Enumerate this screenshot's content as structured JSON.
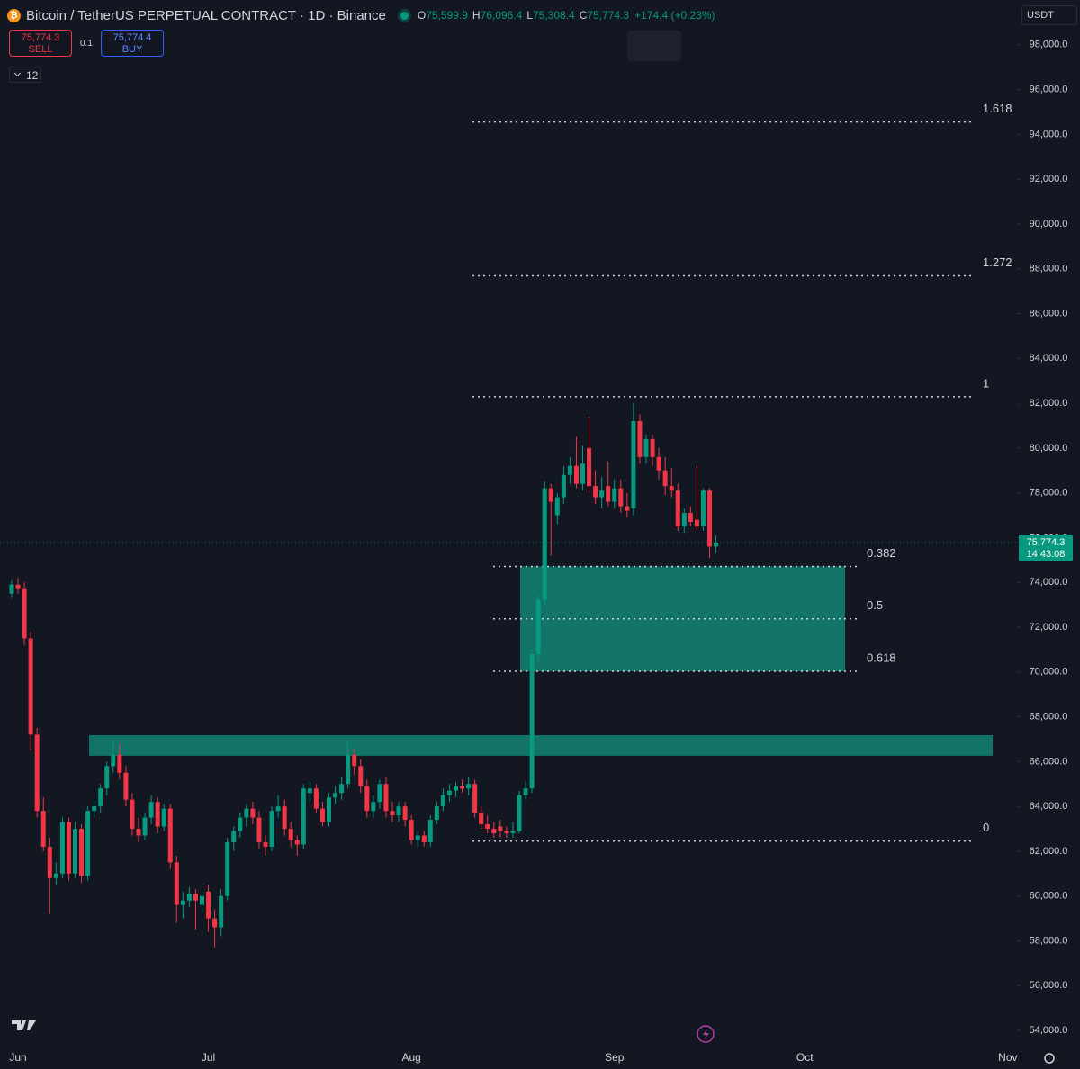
{
  "chart_data": {
    "type": "candlestick",
    "symbol": "Bitcoin / TetherUS PERPETUAL CONTRACT · 1D · Binance",
    "legend": [
      {
        "key": "O",
        "value": "75,599.9"
      },
      {
        "key": "H",
        "value": "76,096.4"
      },
      {
        "key": "L",
        "value": "75,308.4"
      },
      {
        "key": "C",
        "value": "75,774.3"
      }
    ],
    "change": "+174.4 (+0.23%)",
    "currency": "USDT",
    "sell": {
      "price": "75,774.3",
      "label": "SELL"
    },
    "quantity": "0.1",
    "buy": {
      "price": "75,774.4",
      "label": "BUY"
    },
    "indicators_count": "12",
    "last_price": {
      "label": "75,774.3",
      "countdown": "14:43:08"
    },
    "up_color": "#089981",
    "down_color": "#f23645",
    "categories": [
      null,
      "Jun",
      null,
      null,
      null,
      null,
      null,
      null,
      null,
      null,
      null,
      null,
      null,
      null,
      null,
      null,
      null,
      null,
      null,
      null,
      null,
      null,
      null,
      null,
      null,
      null,
      null,
      null,
      null,
      null,
      null,
      "Jul",
      null,
      null,
      null,
      null,
      null,
      null,
      null,
      null,
      null,
      null,
      null,
      null,
      null,
      null,
      null,
      null,
      null,
      null,
      null,
      null,
      null,
      null,
      null,
      null,
      null,
      null,
      null,
      null,
      null,
      null,
      null,
      "Aug",
      null,
      null,
      null,
      null,
      null,
      null,
      null,
      null,
      null,
      null,
      null,
      null,
      null,
      null,
      null,
      null,
      null,
      null,
      null,
      null,
      null,
      null,
      null,
      null,
      null,
      null,
      null,
      null,
      null,
      null,
      null,
      "Sep",
      null,
      null,
      null,
      null,
      null,
      null,
      null,
      null,
      null,
      null,
      null,
      null,
      null,
      null,
      null,
      null,
      null,
      null,
      null,
      null,
      null,
      null,
      null,
      null,
      null,
      null,
      null,
      null,
      null,
      "Oct",
      null,
      null,
      null,
      null,
      null,
      null,
      null,
      null,
      null,
      null,
      null,
      null,
      null,
      null,
      null,
      null,
      null,
      null,
      null,
      null,
      null,
      null,
      null,
      null,
      null,
      null,
      null,
      null,
      null,
      null,
      null,
      "Nov"
    ],
    "ohlc": [
      [
        73500,
        74100,
        73300,
        73900
      ],
      [
        73900,
        74200,
        73500,
        73700
      ],
      [
        73700,
        74000,
        71200,
        71500
      ],
      [
        71500,
        71800,
        66500,
        67200
      ],
      [
        67200,
        67500,
        63500,
        63800
      ],
      [
        63800,
        64400,
        62000,
        62200
      ],
      [
        62200,
        62600,
        59200,
        60800
      ],
      [
        60800,
        61500,
        60500,
        61000
      ],
      [
        61000,
        63500,
        60800,
        63300
      ],
      [
        63300,
        63500,
        60700,
        61000
      ],
      [
        61000,
        63300,
        60800,
        63000
      ],
      [
        63000,
        63200,
        60600,
        60900
      ],
      [
        60900,
        64000,
        60700,
        63800
      ],
      [
        63800,
        64300,
        63500,
        64000
      ],
      [
        64000,
        65000,
        63700,
        64800
      ],
      [
        64800,
        66000,
        64500,
        65800
      ],
      [
        65800,
        66900,
        65500,
        66300
      ],
      [
        66300,
        66800,
        65200,
        65500
      ],
      [
        65500,
        65800,
        64000,
        64300
      ],
      [
        64300,
        64600,
        62700,
        63000
      ],
      [
        63000,
        63500,
        62400,
        62700
      ],
      [
        62700,
        63700,
        62500,
        63500
      ],
      [
        63500,
        64500,
        63200,
        64200
      ],
      [
        64200,
        64400,
        62800,
        63100
      ],
      [
        63100,
        64100,
        62900,
        63900
      ],
      [
        63900,
        64100,
        61200,
        61500
      ],
      [
        61500,
        61800,
        58800,
        59600
      ],
      [
        59600,
        60200,
        59000,
        59800
      ],
      [
        59800,
        60400,
        59500,
        60100
      ],
      [
        60100,
        60300,
        58500,
        59800
      ],
      [
        59600,
        60300,
        59200,
        60000
      ],
      [
        60200,
        60500,
        58400,
        59000
      ],
      [
        59000,
        59400,
        57700,
        58600
      ],
      [
        58600,
        60300,
        58200,
        60000
      ],
      [
        60000,
        62600,
        59800,
        62400
      ],
      [
        62400,
        63100,
        62000,
        62900
      ],
      [
        62900,
        63700,
        62600,
        63500
      ],
      [
        63500,
        64100,
        63100,
        63900
      ],
      [
        63900,
        64200,
        63200,
        63500
      ],
      [
        63500,
        63800,
        62100,
        62400
      ],
      [
        62400,
        62700,
        61800,
        62200
      ],
      [
        62200,
        64000,
        62000,
        63800
      ],
      [
        63800,
        64500,
        63500,
        64000
      ],
      [
        64000,
        64300,
        62700,
        63000
      ],
      [
        63000,
        63300,
        62200,
        62500
      ],
      [
        62500,
        62700,
        61800,
        62300
      ],
      [
        62300,
        65000,
        62100,
        64800
      ],
      [
        64600,
        65100,
        64200,
        64800
      ],
      [
        64800,
        65000,
        63700,
        63900
      ],
      [
        63900,
        64200,
        63100,
        63300
      ],
      [
        63300,
        64600,
        63100,
        64400
      ],
      [
        64400,
        64900,
        64100,
        64600
      ],
      [
        64600,
        65300,
        64300,
        65000
      ],
      [
        65000,
        66900,
        64800,
        66300
      ],
      [
        66300,
        66600,
        65400,
        65800
      ],
      [
        65800,
        66100,
        64600,
        64900
      ],
      [
        64900,
        65200,
        63500,
        63800
      ],
      [
        63800,
        64500,
        63500,
        64200
      ],
      [
        64200,
        65200,
        63900,
        65000
      ],
      [
        65000,
        65300,
        63500,
        63800
      ],
      [
        63800,
        64200,
        63300,
        63600
      ],
      [
        63600,
        64200,
        63300,
        64000
      ],
      [
        64000,
        64200,
        63100,
        63400
      ],
      [
        63400,
        63600,
        62300,
        62500
      ],
      [
        62500,
        62900,
        62200,
        62700
      ],
      [
        62700,
        62900,
        62200,
        62400
      ],
      [
        62400,
        63600,
        62200,
        63400
      ],
      [
        63400,
        64200,
        63200,
        64000
      ],
      [
        64000,
        64800,
        63800,
        64500
      ],
      [
        64500,
        65000,
        64200,
        64700
      ],
      [
        64700,
        65100,
        64400,
        64900
      ],
      [
        64900,
        65200,
        64600,
        64800
      ],
      [
        64800,
        65300,
        64500,
        65000
      ],
      [
        65000,
        65200,
        63500,
        63700
      ],
      [
        63700,
        64000,
        63000,
        63200
      ],
      [
        63200,
        63600,
        62800,
        63000
      ],
      [
        63000,
        63300,
        62600,
        62800
      ],
      [
        63100,
        63400,
        62600,
        62900
      ],
      [
        62900,
        63100,
        62600,
        62800
      ],
      [
        62800,
        63300,
        62600,
        62900
      ],
      [
        62900,
        64700,
        62800,
        64500
      ],
      [
        64500,
        65100,
        64300,
        64800
      ],
      [
        64800,
        71000,
        64600,
        70800
      ],
      [
        70800,
        73400,
        70500,
        73200
      ],
      [
        73200,
        78500,
        73000,
        78200
      ],
      [
        78200,
        78400,
        75200,
        77600
      ],
      [
        77000,
        78000,
        76600,
        77800
      ],
      [
        77800,
        79200,
        77500,
        78800
      ],
      [
        78800,
        79600,
        78400,
        79200
      ],
      [
        79200,
        80500,
        78200,
        78400
      ],
      [
        78400,
        80100,
        78100,
        79300
      ],
      [
        80000,
        81400,
        78000,
        78300
      ],
      [
        78300,
        79000,
        77500,
        77800
      ],
      [
        77800,
        78700,
        77300,
        78100
      ],
      [
        78300,
        79400,
        77400,
        77600
      ],
      [
        77600,
        78600,
        77300,
        78200
      ],
      [
        78200,
        78600,
        77100,
        77400
      ],
      [
        77400,
        78000,
        76900,
        77200
      ],
      [
        77300,
        82000,
        77000,
        81200
      ],
      [
        81200,
        81500,
        79300,
        79600
      ],
      [
        79600,
        80600,
        79300,
        80400
      ],
      [
        80400,
        80600,
        79200,
        79600
      ],
      [
        79600,
        80000,
        78600,
        79000
      ],
      [
        79000,
        79600,
        77900,
        78300
      ],
      [
        78300,
        79100,
        77800,
        78100
      ],
      [
        78100,
        78400,
        76300,
        76500
      ],
      [
        76500,
        77300,
        76200,
        77100
      ],
      [
        77100,
        77400,
        76500,
        76700
      ],
      [
        76800,
        79200,
        76300,
        76500
      ],
      [
        76500,
        78200,
        76300,
        78100
      ],
      [
        78100,
        78200,
        75100,
        75600
      ],
      [
        75599.9,
        76096.4,
        75308.4,
        75774.3
      ],
      null,
      null,
      null,
      null,
      null,
      null,
      null,
      null,
      null,
      null,
      null,
      null,
      null,
      null,
      null,
      null,
      null,
      null,
      null,
      null,
      null,
      null,
      null,
      null,
      null,
      null,
      null,
      null,
      null,
      null,
      null,
      null,
      null,
      null,
      null,
      null,
      null,
      null,
      null,
      null,
      null,
      null,
      null,
      null,
      null,
      null
    ],
    "ylim": [
      53400,
      100000
    ],
    "yticks": [
      {
        "value": 54000,
        "label": "54,000.0"
      },
      {
        "value": 56000,
        "label": "56,000.0"
      },
      {
        "value": 58000,
        "label": "58,000.0"
      },
      {
        "value": 60000,
        "label": "60,000.0"
      },
      {
        "value": 62000,
        "label": "62,000.0"
      },
      {
        "value": 64000,
        "label": "64,000.0"
      },
      {
        "value": 66000,
        "label": "66,000.0"
      },
      {
        "value": 68000,
        "label": "68,000.0"
      },
      {
        "value": 70000,
        "label": "70,000.0"
      },
      {
        "value": 72000,
        "label": "72,000.0"
      },
      {
        "value": 74000,
        "label": "74,000.0"
      },
      {
        "value": 76000,
        "label": "76,000.0"
      },
      {
        "value": 78000,
        "label": "78,000.0"
      },
      {
        "value": 80000,
        "label": "80,000.0"
      },
      {
        "value": 82000,
        "label": "82,000.0"
      },
      {
        "value": 84000,
        "label": "84,000.0"
      },
      {
        "value": 86000,
        "label": "86,000.0"
      },
      {
        "value": 88000,
        "label": "88,000.0"
      },
      {
        "value": 90000,
        "label": "90,000.0"
      },
      {
        "value": 92000,
        "label": "92,000.0"
      },
      {
        "value": 94000,
        "label": "94,000.0"
      },
      {
        "value": 96000,
        "label": "96,000.0"
      },
      {
        "value": 98000,
        "label": "98,000.0"
      }
    ],
    "fib_levels": [
      {
        "ratio": 1.618,
        "price": 94551
      },
      {
        "ratio": 1.272,
        "price": 87686
      },
      {
        "ratio": 1,
        "price": 82290
      },
      {
        "ratio": 0.382,
        "price": 74711
      },
      {
        "ratio": 0.5,
        "price": 72370
      },
      {
        "ratio": 0.618,
        "price": 70029
      },
      {
        "ratio": 0,
        "price": 62450
      }
    ],
    "zones": [
      {
        "top": 74711,
        "bottom": 70029,
        "color": "#12786b"
      },
      {
        "top": 67180,
        "bottom": 66260,
        "color": "#12786b"
      }
    ]
  }
}
